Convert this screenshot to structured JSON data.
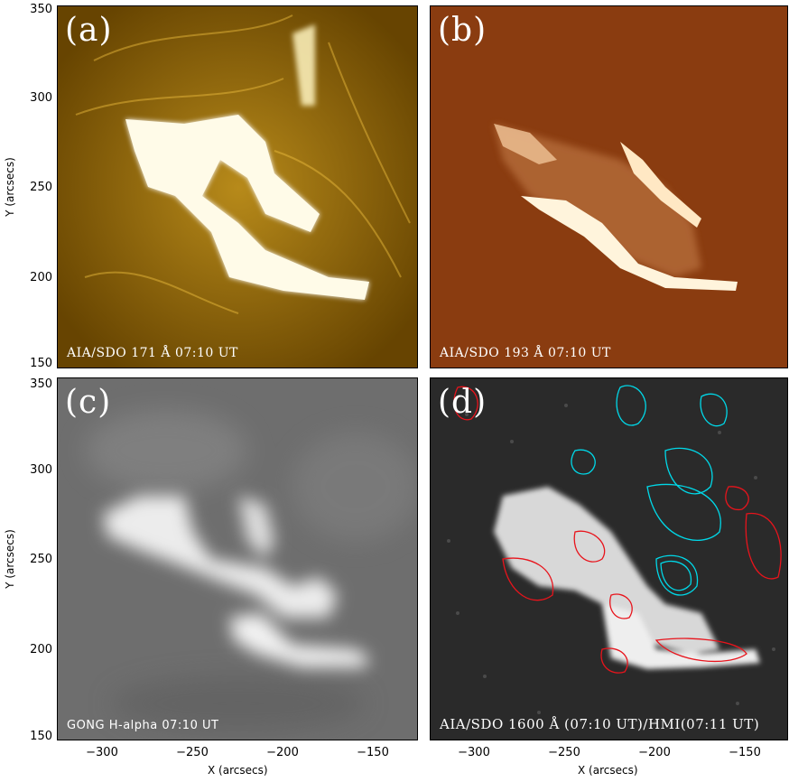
{
  "panels": {
    "a": {
      "letter": "(a)",
      "caption": "AIA/SDO 171 Å 07:10 UT"
    },
    "b": {
      "letter": "(b)",
      "caption": "AIA/SDO 193 Å 07:10 UT"
    },
    "c": {
      "letter": "(c)",
      "caption": "GONG H-alpha 07:10 UT"
    },
    "d": {
      "letter": "(d)",
      "caption": "AIA/SDO 1600 Å (07:10 UT)/HMI(07:11 UT)"
    }
  },
  "axes": {
    "y_label": "Y (arcsecs)",
    "x_label": "X (arcsecs)",
    "y_ticks": [
      "350",
      "300",
      "250",
      "200",
      "150"
    ],
    "x_ticks": [
      "−300",
      "−250",
      "−200",
      "−150"
    ]
  },
  "colors": {
    "aia171": "#c8950a",
    "aia193": "#8a3c10",
    "halpha": "#6e6e6e",
    "aia1600": "#2a2a2a",
    "contour_positive": "#00d8e8",
    "contour_negative": "#e8141c"
  }
}
